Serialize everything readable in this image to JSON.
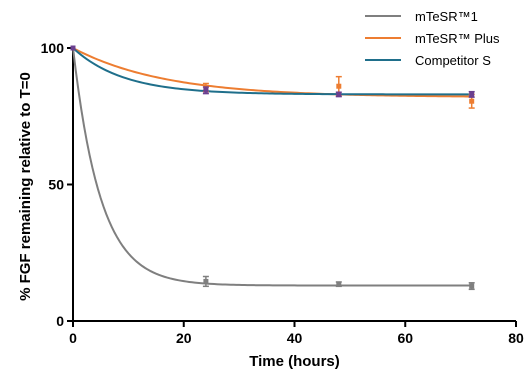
{
  "chart_data": {
    "type": "line",
    "xlabel": "Time (hours)",
    "ylabel": "% FGF remaining relative to T=0",
    "xlim": [
      0,
      80
    ],
    "ylim": [
      0,
      100
    ],
    "xticks": [
      0,
      20,
      40,
      60,
      80
    ],
    "yticks": [
      0,
      50,
      100
    ],
    "grid": false,
    "legend_position": "top-right",
    "series": [
      {
        "name": "mTeSR™1",
        "color": "#7f7f7f",
        "marker_color": "#7f7f7f",
        "points": [
          {
            "x": 0,
            "y": 100,
            "err": 0
          },
          {
            "x": 24,
            "y": 14.5,
            "err": 1.8
          },
          {
            "x": 48,
            "y": 13.5,
            "err": 0.8
          },
          {
            "x": 72,
            "y": 12.8,
            "err": 1.2
          }
        ],
        "fit": {
          "plateau": 13,
          "k": 0.2
        }
      },
      {
        "name": "mTeSR™ Plus",
        "color": "#ed7d31",
        "marker_color": "#ed7d31",
        "points": [
          {
            "x": 0,
            "y": 100,
            "err": 0
          },
          {
            "x": 24,
            "y": 85.5,
            "err": 1.5
          },
          {
            "x": 48,
            "y": 86,
            "err": 3.5
          },
          {
            "x": 72,
            "y": 80.5,
            "err": 2.5
          }
        ],
        "fit": {
          "plateau": 82,
          "k": 0.06
        }
      },
      {
        "name": "Competitor S",
        "color": "#1f6f8b",
        "marker_color": "#6b3f8f",
        "points": [
          {
            "x": 0,
            "y": 100,
            "err": 0
          },
          {
            "x": 24,
            "y": 84.5,
            "err": 1.2
          },
          {
            "x": 48,
            "y": 83,
            "err": 0.8
          },
          {
            "x": 72,
            "y": 83,
            "err": 1
          }
        ],
        "fit": {
          "plateau": 83,
          "k": 0.11
        }
      }
    ]
  }
}
